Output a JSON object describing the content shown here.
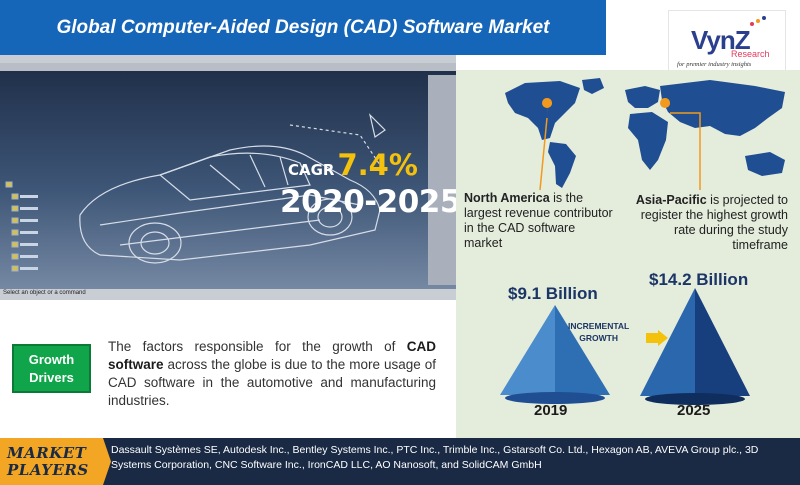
{
  "title": "Global Computer-Aided Design (CAD) Software Market",
  "logo": {
    "brand": "VynZ",
    "sub": "Research",
    "tagline": "for premier industry insights"
  },
  "cad_panel": {
    "status_text": "Select an object or a command",
    "cagr_label": "CAGR",
    "cagr_value": "7.4%",
    "period": "2020-2025"
  },
  "regions": {
    "north_america": {
      "name": "North America",
      "text": "is the largest revenue contributor in the CAD software market"
    },
    "asia_pacific": {
      "name": "Asia-Pacific",
      "text": "is projected to register the highest growth rate during the study timeframe"
    }
  },
  "market_size": {
    "value_2019": "$9.1 Billion",
    "value_2025": "$14.2 Billion",
    "year_2019": "2019",
    "year_2025": "2025",
    "incremental_line1": "INCREMENTAL",
    "incremental_line2": "GROWTH"
  },
  "growth_drivers": {
    "label_line1": "Growth",
    "label_line2": "Drivers",
    "text_before": "The factors responsible for the growth of",
    "highlight": "CAD software",
    "text_after": "across the globe is due to the more usage of CAD software in the automotive and manufacturing industries."
  },
  "market_players": {
    "label_line1": "MARKET",
    "label_line2": "PLAYERS",
    "text": "Dassault Systèmes SE, Autodesk Inc., Bentley Systems Inc., PTC Inc., Trimble Inc., Gstarsoft Co. Ltd., Hexagon AB, AVEVA Group plc., 3D Systems Corporation, CNC Software Inc., IronCAD LLC, AO Nanosoft, and SolidCAM GmbH"
  },
  "colors": {
    "title_bg": "#1565b8",
    "accent_yellow": "#f4c20d",
    "growth_green": "#10a54a",
    "footer_bg": "#1a2a44",
    "players_orange": "#f2a623",
    "map_blue": "#1f4e92",
    "pin_orange": "#f29a1d"
  }
}
